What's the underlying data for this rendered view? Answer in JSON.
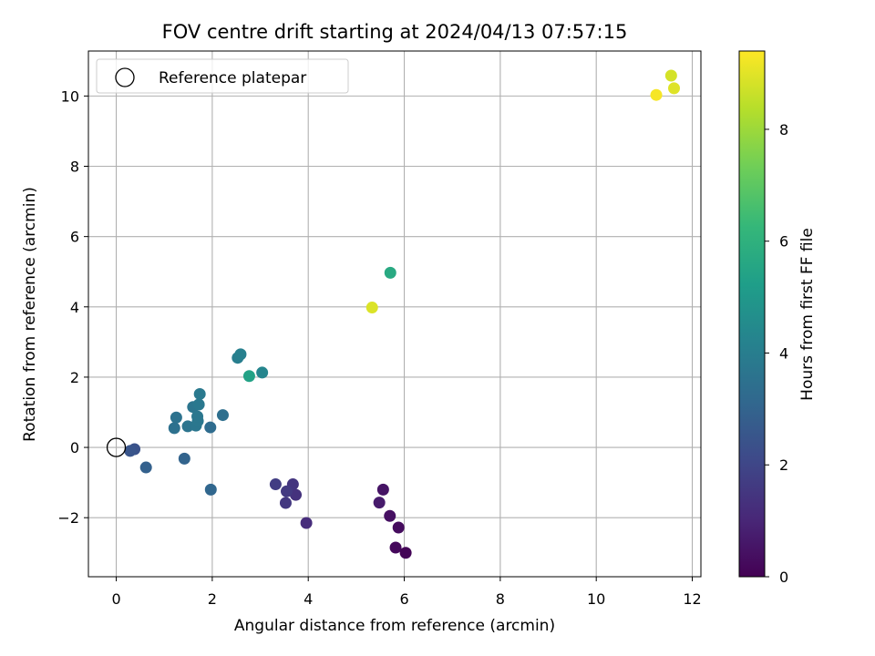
{
  "chart_data": {
    "type": "scatter",
    "title": "FOV centre drift starting at 2024/04/13 07:57:15",
    "xlabel": "Angular distance from reference (arcmin)",
    "ylabel": "Rotation from reference (arcmin)",
    "xlim": [
      -0.58,
      12.18
    ],
    "ylim": [
      -3.68,
      11.28
    ],
    "xticks": [
      0,
      2,
      4,
      6,
      8,
      10,
      12
    ],
    "yticks": [
      -2,
      0,
      2,
      4,
      6,
      8,
      10
    ],
    "ytick_labels": [
      "−2",
      "0",
      "2",
      "4",
      "6",
      "8",
      "10"
    ],
    "grid": true,
    "legend": {
      "position": "top-left",
      "entries": [
        "Reference platepar"
      ]
    },
    "reference_point": {
      "x": 0,
      "y": 0,
      "style": "hollow-circle",
      "color": "#000000"
    },
    "colorbar": {
      "label": "Hours from first FF file",
      "range": [
        0,
        9.4
      ],
      "ticks": [
        0,
        2,
        4,
        6,
        8
      ],
      "colormap": "viridis",
      "colors": [
        "#440154",
        "#482878",
        "#3e4989",
        "#31688e",
        "#26828e",
        "#1f9e89",
        "#35b779",
        "#6ece58",
        "#b5de2b",
        "#fde725"
      ]
    },
    "points": [
      {
        "x": 6.03,
        "y": -3.0,
        "hours": 0.1
      },
      {
        "x": 5.82,
        "y": -2.85,
        "hours": 0.2
      },
      {
        "x": 5.88,
        "y": -2.28,
        "hours": 0.3
      },
      {
        "x": 5.7,
        "y": -1.95,
        "hours": 0.4
      },
      {
        "x": 5.56,
        "y": -1.2,
        "hours": 0.5
      },
      {
        "x": 5.48,
        "y": -1.57,
        "hours": 0.7
      },
      {
        "x": 3.96,
        "y": -2.15,
        "hours": 1.2
      },
      {
        "x": 3.74,
        "y": -1.35,
        "hours": 1.35
      },
      {
        "x": 3.68,
        "y": -1.05,
        "hours": 1.45
      },
      {
        "x": 3.53,
        "y": -1.58,
        "hours": 1.55
      },
      {
        "x": 3.55,
        "y": -1.25,
        "hours": 1.6
      },
      {
        "x": 3.32,
        "y": -1.05,
        "hours": 1.7
      },
      {
        "x": 0.38,
        "y": -0.05,
        "hours": 2.4
      },
      {
        "x": 0.29,
        "y": -0.1,
        "hours": 2.5
      },
      {
        "x": 0.62,
        "y": -0.57,
        "hours": 2.9
      },
      {
        "x": 1.42,
        "y": -0.32,
        "hours": 3.0
      },
      {
        "x": 1.97,
        "y": -1.2,
        "hours": 3.1
      },
      {
        "x": 1.96,
        "y": 0.57,
        "hours": 3.3
      },
      {
        "x": 2.22,
        "y": 0.92,
        "hours": 3.4
      },
      {
        "x": 1.21,
        "y": 0.55,
        "hours": 3.5
      },
      {
        "x": 1.25,
        "y": 0.85,
        "hours": 3.55
      },
      {
        "x": 1.49,
        "y": 0.6,
        "hours": 3.6
      },
      {
        "x": 1.6,
        "y": 1.15,
        "hours": 3.65
      },
      {
        "x": 1.66,
        "y": 0.62,
        "hours": 3.7
      },
      {
        "x": 1.7,
        "y": 0.75,
        "hours": 3.72
      },
      {
        "x": 1.69,
        "y": 0.88,
        "hours": 3.75
      },
      {
        "x": 1.72,
        "y": 1.22,
        "hours": 3.78
      },
      {
        "x": 1.74,
        "y": 1.52,
        "hours": 3.8
      },
      {
        "x": 2.53,
        "y": 2.55,
        "hours": 4.0
      },
      {
        "x": 2.59,
        "y": 2.65,
        "hours": 4.1
      },
      {
        "x": 3.04,
        "y": 2.13,
        "hours": 4.3
      },
      {
        "x": 2.77,
        "y": 2.03,
        "hours": 5.4
      },
      {
        "x": 5.71,
        "y": 4.97,
        "hours": 5.7
      },
      {
        "x": 5.33,
        "y": 3.98,
        "hours": 8.9
      },
      {
        "x": 11.56,
        "y": 10.58,
        "hours": 8.8
      },
      {
        "x": 11.62,
        "y": 10.22,
        "hours": 8.95
      },
      {
        "x": 11.25,
        "y": 10.03,
        "hours": 9.3
      }
    ]
  }
}
